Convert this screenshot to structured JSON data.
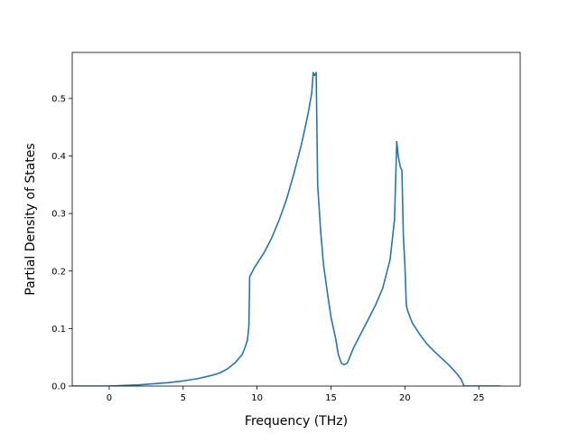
{
  "chart_data": {
    "type": "line",
    "title": "",
    "xlabel": "Frequency (THz)",
    "ylabel": "Partial Density of States",
    "xlim": [
      -2.5,
      27.8
    ],
    "ylim": [
      0,
      0.58
    ],
    "grid": false,
    "legend": "none",
    "colors": {
      "line": "#1f77b4",
      "axes": "#000000",
      "background": "#ffffff"
    },
    "x_ticks": [
      {
        "value": 0,
        "label": "0"
      },
      {
        "value": 5,
        "label": "5"
      },
      {
        "value": 10,
        "label": "10"
      },
      {
        "value": 15,
        "label": "15"
      },
      {
        "value": 20,
        "label": "20"
      },
      {
        "value": 25,
        "label": "25"
      }
    ],
    "y_ticks": [
      {
        "value": 0.0,
        "label": "0.0"
      },
      {
        "value": 0.1,
        "label": "0.1"
      },
      {
        "value": 0.2,
        "label": "0.2"
      },
      {
        "value": 0.3,
        "label": "0.3"
      },
      {
        "value": 0.4,
        "label": "0.4"
      },
      {
        "value": 0.5,
        "label": "0.5"
      }
    ],
    "series": [
      {
        "x": [
          -2.5,
          -1,
          0,
          1,
          2,
          3,
          4,
          5,
          6,
          7,
          7.5,
          8,
          8.5,
          9,
          9.2,
          9.35,
          9.45,
          9.5,
          9.8,
          10,
          10.5,
          11,
          11.5,
          12,
          12.5,
          13,
          13.3,
          13.5,
          13.7,
          13.8,
          13.9,
          14.0,
          14.1,
          14.3,
          14.5,
          14.8,
          15.0,
          15.3,
          15.5,
          15.7,
          15.9,
          16.1,
          16.3,
          16.5,
          17,
          17.5,
          18,
          18.5,
          19,
          19.3,
          19.45,
          19.55,
          19.7,
          19.8,
          19.9,
          20.0,
          20.1,
          20.2,
          20.5,
          21,
          21.5,
          22,
          22.5,
          23,
          23.5,
          23.8,
          24.0,
          24.5,
          25,
          26.5
        ],
        "y": [
          0,
          0,
          0,
          0.001,
          0.002,
          0.004,
          0.006,
          0.009,
          0.013,
          0.019,
          0.023,
          0.03,
          0.04,
          0.055,
          0.068,
          0.08,
          0.105,
          0.19,
          0.205,
          0.213,
          0.233,
          0.258,
          0.289,
          0.325,
          0.37,
          0.42,
          0.455,
          0.48,
          0.51,
          0.545,
          0.54,
          0.545,
          0.35,
          0.27,
          0.21,
          0.155,
          0.12,
          0.085,
          0.055,
          0.04,
          0.037,
          0.04,
          0.052,
          0.065,
          0.09,
          0.115,
          0.14,
          0.17,
          0.22,
          0.29,
          0.425,
          0.4,
          0.38,
          0.375,
          0.26,
          0.21,
          0.14,
          0.13,
          0.11,
          0.09,
          0.073,
          0.06,
          0.048,
          0.036,
          0.022,
          0.012,
          0,
          0,
          0,
          0
        ]
      }
    ]
  }
}
